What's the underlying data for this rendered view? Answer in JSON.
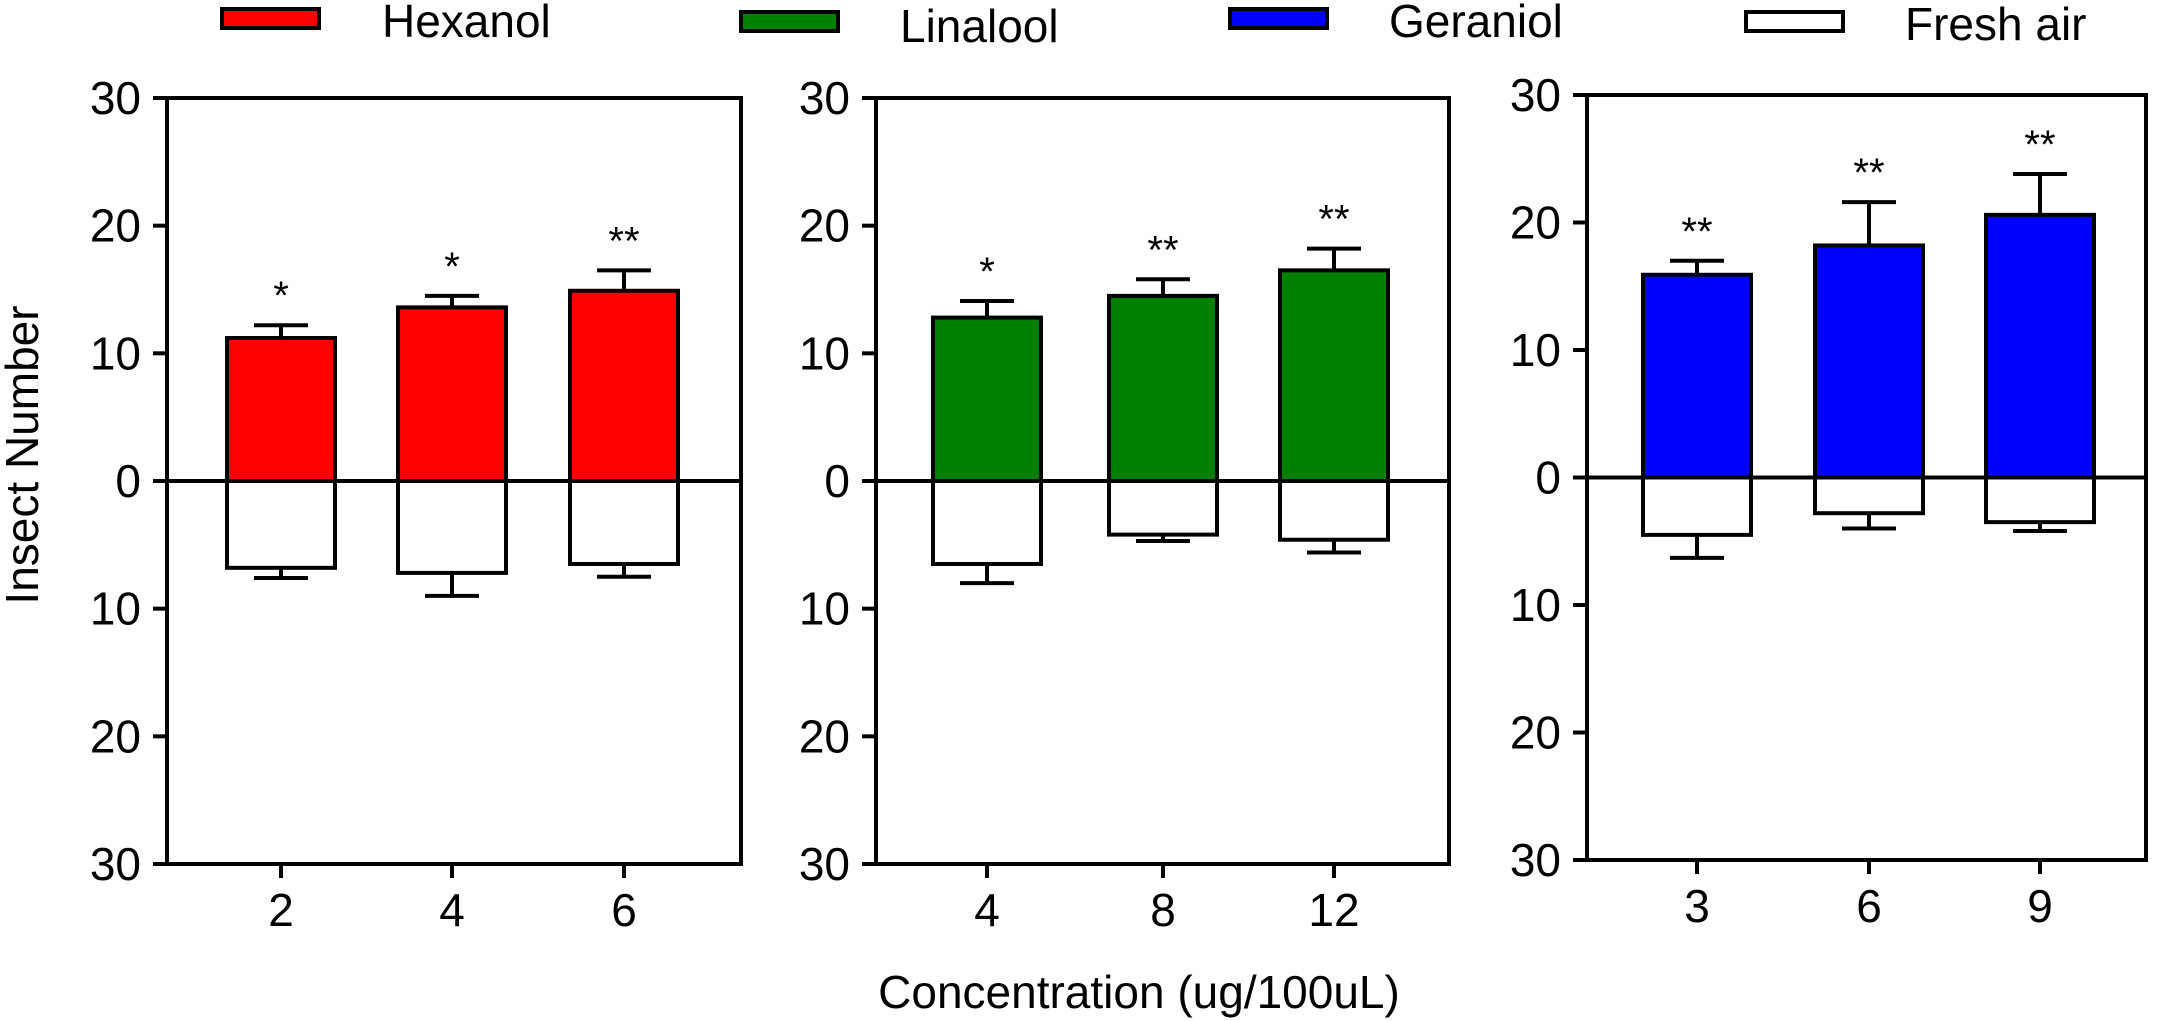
{
  "chart_data": {
    "type": "bar",
    "xlabel": "Concentration (ug/100uL)",
    "ylabel": "Insect Number",
    "ylim": [
      -30,
      30
    ],
    "y_ticks": [
      30,
      20,
      10,
      0,
      10,
      20,
      30
    ],
    "legend": [
      {
        "name": "Hexanol",
        "color": "#ff0000"
      },
      {
        "name": "Linalool",
        "color": "#008000"
      },
      {
        "name": "Geraniol",
        "color": "#0000ff"
      },
      {
        "name": "Fresh air",
        "color": "#ffffff"
      }
    ],
    "panels": [
      {
        "name": "Hexanol",
        "color": "#ff0000",
        "categories": [
          "2",
          "4",
          "6"
        ],
        "treatment": [
          11.2,
          13.6,
          14.9
        ],
        "treatment_err": [
          1.0,
          0.9,
          1.6
        ],
        "fresh_air": [
          6.8,
          7.2,
          6.5
        ],
        "fresh_air_err": [
          0.8,
          1.8,
          1.0
        ],
        "significance": [
          "*",
          "*",
          "**"
        ]
      },
      {
        "name": "Linalool",
        "color": "#008000",
        "categories": [
          "4",
          "8",
          "12"
        ],
        "treatment": [
          12.8,
          14.5,
          16.5
        ],
        "treatment_err": [
          1.3,
          1.3,
          1.7
        ],
        "fresh_air": [
          6.5,
          4.2,
          4.6
        ],
        "fresh_air_err": [
          1.5,
          0.5,
          1.0
        ],
        "significance": [
          "*",
          "**",
          "**"
        ]
      },
      {
        "name": "Geraniol",
        "color": "#0000ff",
        "categories": [
          "3",
          "6",
          "9"
        ],
        "treatment": [
          15.9,
          18.2,
          20.6
        ],
        "treatment_err": [
          1.1,
          3.4,
          3.2
        ],
        "fresh_air": [
          4.5,
          2.8,
          3.5
        ],
        "fresh_air_err": [
          1.8,
          1.2,
          0.7
        ],
        "significance": [
          "**",
          "**",
          "**"
        ]
      }
    ]
  }
}
